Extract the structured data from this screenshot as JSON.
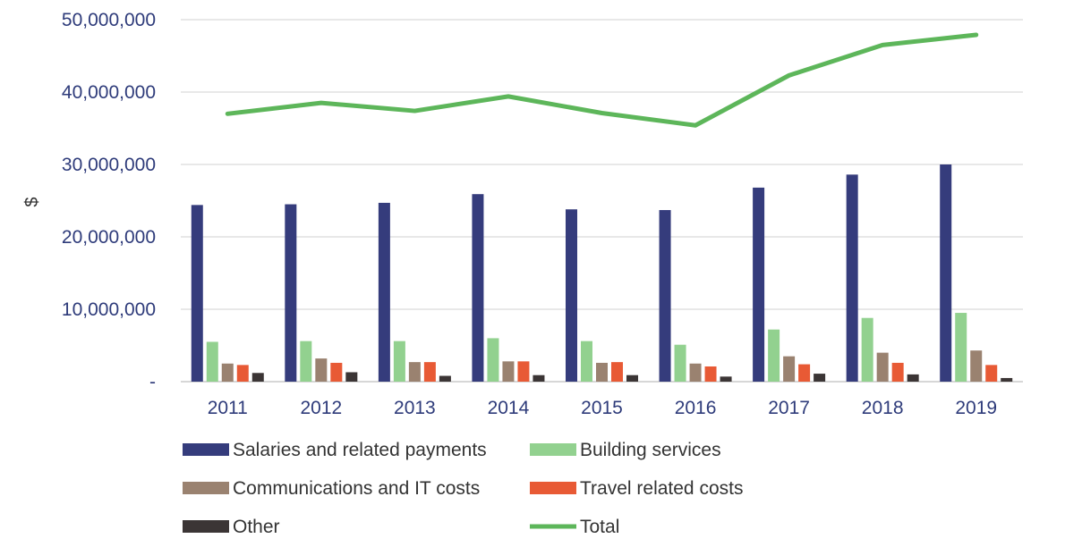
{
  "chart_data": {
    "type": "bar",
    "title": "",
    "xlabel": "",
    "ylabel": "$",
    "ylim": [
      0,
      50000000
    ],
    "yticks": [
      0,
      10000000,
      20000000,
      30000000,
      40000000,
      50000000
    ],
    "ytick_labels": [
      "-",
      "10,000,000",
      "20,000,000",
      "30,000,000",
      "40,000,000",
      "50,000,000"
    ],
    "grid": true,
    "legend_position": "bottom",
    "categories": [
      "2011",
      "2012",
      "2013",
      "2014",
      "2015",
      "2016",
      "2017",
      "2018",
      "2019"
    ],
    "series": [
      {
        "name": "Salaries and related payments",
        "type": "bar",
        "color": "#353c7c",
        "values": [
          24400000,
          24500000,
          24700000,
          25900000,
          23800000,
          23700000,
          26800000,
          28600000,
          30000000
        ]
      },
      {
        "name": "Building services",
        "type": "bar",
        "color": "#92d18f",
        "values": [
          5500000,
          5600000,
          5600000,
          6000000,
          5600000,
          5100000,
          7200000,
          8800000,
          9500000
        ]
      },
      {
        "name": "Communications and IT costs",
        "type": "bar",
        "color": "#9a8270",
        "values": [
          2500000,
          3200000,
          2700000,
          2800000,
          2600000,
          2500000,
          3500000,
          4000000,
          4300000
        ]
      },
      {
        "name": "Travel related costs",
        "type": "bar",
        "color": "#e85a35",
        "values": [
          2300000,
          2600000,
          2700000,
          2800000,
          2700000,
          2100000,
          2400000,
          2600000,
          2300000
        ]
      },
      {
        "name": "Other",
        "type": "bar",
        "color": "#3b3535",
        "values": [
          1200000,
          1300000,
          800000,
          900000,
          900000,
          700000,
          1100000,
          1000000,
          500000
        ]
      },
      {
        "name": "Total",
        "type": "line",
        "color": "#5db65a",
        "values": [
          37000000,
          38500000,
          37400000,
          39400000,
          37100000,
          35400000,
          42300000,
          46500000,
          47900000
        ]
      }
    ]
  }
}
